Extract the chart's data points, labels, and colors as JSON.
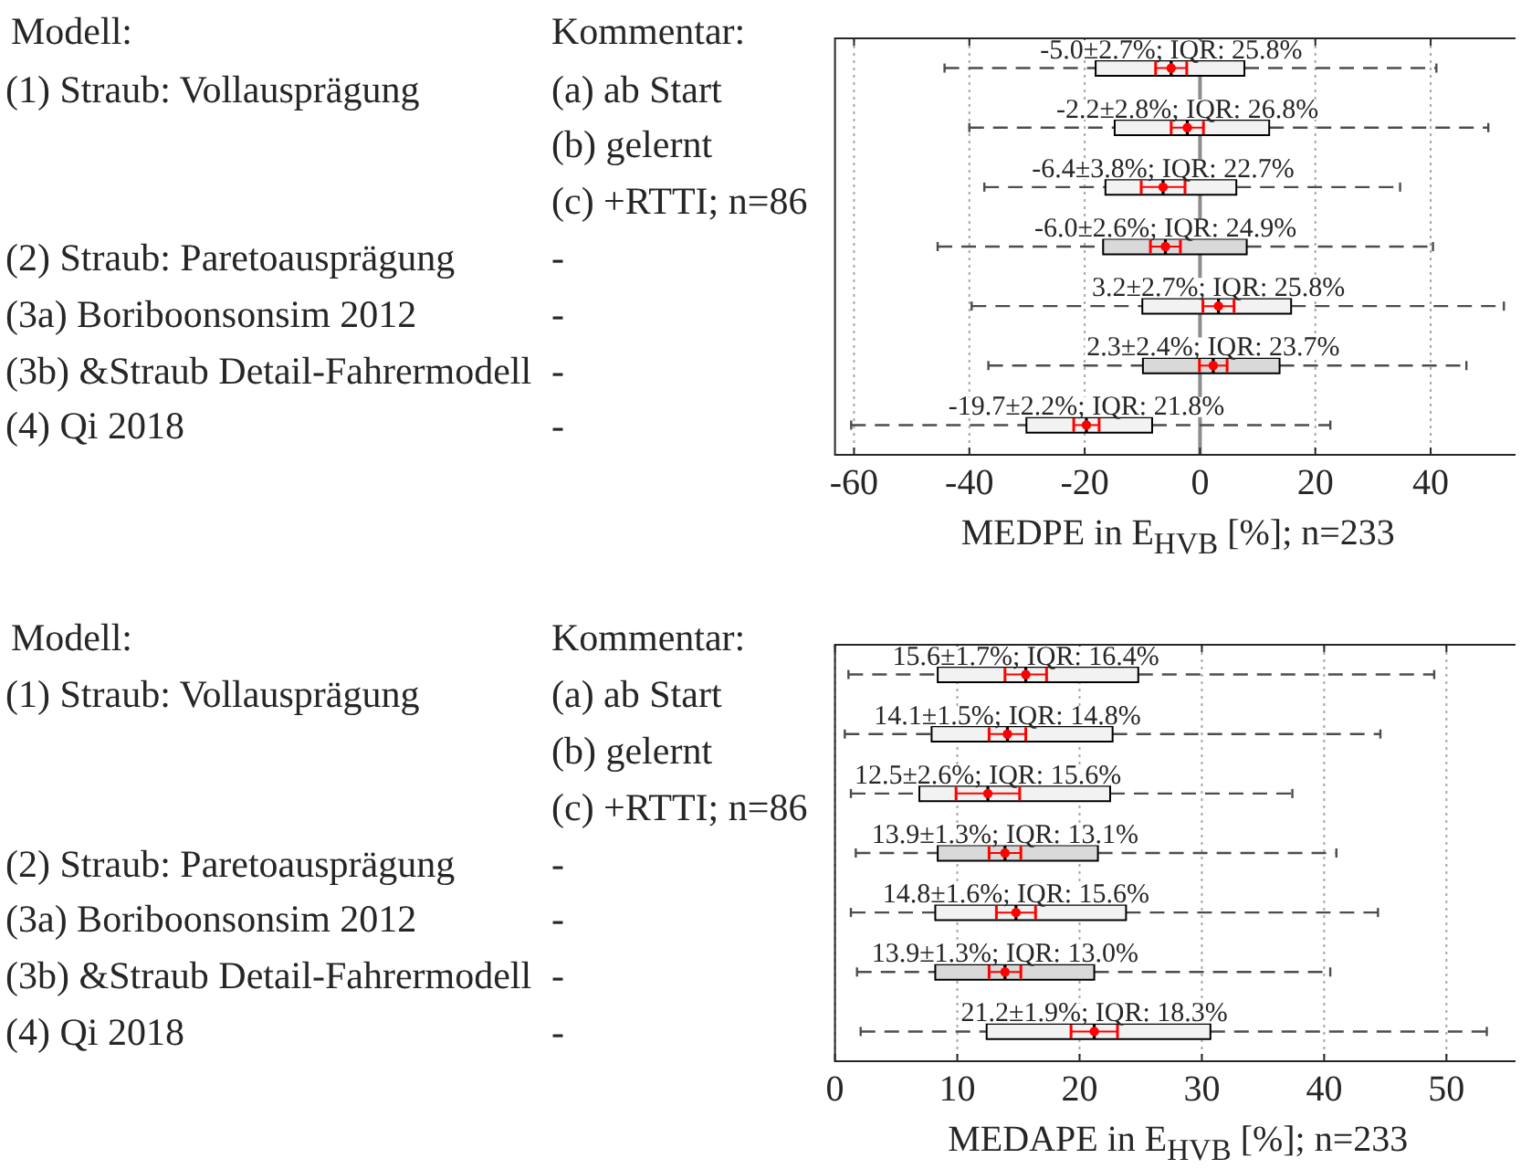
{
  "chart_data": [
    {
      "type": "other",
      "ylabel": "Modell:",
      "y2label": "Kommentar:",
      "y_categories": [
        "(1) Straub: Vollausprägung",
        null,
        null,
        "(2) Straub: Paretoausprägung",
        "(3a) Boriboonsonsim 2012",
        "(3b) &Straub Detail-Fahrermodell",
        "(4) Qi 2018"
      ],
      "y2_categories": [
        "(a) ab Start",
        "(b) gelernt",
        "(c) +RTTI; n=86",
        "-",
        "-",
        "-",
        "-"
      ]
    },
    {
      "type": "box",
      "orientation": "horizontal",
      "categories": [
        null,
        null,
        null,
        null,
        null,
        null,
        null
      ],
      "xlabel": "MEDPE in E$_{HVB}$ [%]; n=233",
      "xlim": [
        -63.3,
        54.4
      ],
      "xticks": [
        -60,
        -40,
        -20,
        0,
        20,
        40
      ],
      "grid": "x",
      "marker": "circle",
      "ref_lines": [
        {
          "axis": "x",
          "value": 0,
          "color": "#8c8c8c"
        }
      ],
      "annotations": [
        "-5.0±2.7%; IQR: 25.8%",
        "-2.2±2.8%; IQR: 26.8%",
        "-6.4±3.8%; IQR: 22.7%",
        "-6.0±2.6%; IQR: 24.9%",
        "3.2±2.7%; IQR: 25.8%",
        "2.3±2.4%; IQR: 23.7%",
        "-19.7±2.2%; IQR: 21.8%"
      ],
      "series": [
        {
          "type": "box",
          "color": "#000000",
          "colors": [
            "#f2f2f2",
            "#f2f2f2",
            "#f2f2f2",
            "#d9d9d9",
            "#f2f2f2",
            "#d9d9d9",
            "#f2f2f2"
          ],
          "boxes": [
            {
              "low": -44.3,
              "q1": -18.1,
              "median": -5.0,
              "q3": 7.7,
              "high": 41.0
            },
            {
              "low": -40.0,
              "q1": -14.8,
              "median": -2.2,
              "q3": 12.0,
              "high": 50.0
            },
            {
              "low": -37.4,
              "q1": -16.4,
              "median": -6.4,
              "q3": 6.3,
              "high": 34.7
            },
            {
              "low": -45.5,
              "q1": -16.8,
              "median": -6.0,
              "q3": 8.1,
              "high": 40.4
            },
            {
              "low": -39.6,
              "q1": -10.0,
              "median": 3.2,
              "q3": 15.8,
              "high": 52.7
            },
            {
              "low": -36.7,
              "q1": -9.9,
              "median": 2.3,
              "q3": 13.8,
              "high": 46.2
            },
            {
              "low": -60.5,
              "q1": -30.1,
              "median": -19.7,
              "q3": -8.3,
              "high": 22.6
            }
          ]
        },
        {
          "type": "scatter",
          "color": "#ff0000",
          "values": [
            -5.0,
            -2.2,
            -6.4,
            -6.0,
            3.2,
            2.3,
            -19.7
          ],
          "errors": [
            2.7,
            2.8,
            3.8,
            2.6,
            2.7,
            2.4,
            2.2
          ]
        }
      ]
    },
    {
      "type": "other",
      "ylabel": "Modell:",
      "y2label": "Kommentar:",
      "y_categories": [
        "(1) Straub: Vollausprägung",
        null,
        null,
        "(2) Straub: Paretoausprägung",
        "(3a) Boriboonsonsim 2012",
        "(3b) &Straub Detail-Fahrermodell",
        "(4) Qi 2018"
      ],
      "y2_categories": [
        "(a) ab Start",
        "(b) gelernt",
        "(c) +RTTI; n=86",
        "-",
        "-",
        "-",
        "-"
      ]
    },
    {
      "type": "box",
      "orientation": "horizontal",
      "categories": [
        null,
        null,
        null,
        null,
        null,
        null,
        null
      ],
      "xlabel": "MEDAPE in E$_{HVB}$ [%]; n=233",
      "xlim": [
        0,
        55.5
      ],
      "xticks": [
        0,
        10,
        20,
        30,
        40,
        50
      ],
      "grid": "x",
      "marker": "circle",
      "annotations": [
        "15.6±1.7%; IQR: 16.4%",
        "14.1±1.5%; IQR: 14.8%",
        "12.5±2.6%; IQR: 15.6%",
        "13.9±1.3%; IQR: 13.1%",
        "14.8±1.6%; IQR: 15.6%",
        "13.9±1.3%; IQR: 13.0%",
        "21.2±1.9%; IQR: 18.3%"
      ],
      "series": [
        {
          "type": "box",
          "color": "#000000",
          "colors": [
            "#f2f2f2",
            "#f2f2f2",
            "#f2f2f2",
            "#d9d9d9",
            "#f2f2f2",
            "#d9d9d9",
            "#f2f2f2"
          ],
          "boxes": [
            {
              "low": 1.1,
              "q1": 8.4,
              "median": 15.6,
              "q3": 24.8,
              "high": 49.0
            },
            {
              "low": 0.8,
              "q1": 7.9,
              "median": 14.1,
              "q3": 22.7,
              "high": 44.6
            },
            {
              "low": 1.3,
              "q1": 6.9,
              "median": 12.5,
              "q3": 22.5,
              "high": 37.4
            },
            {
              "low": 1.7,
              "q1": 8.4,
              "median": 13.9,
              "q3": 21.5,
              "high": 41.0
            },
            {
              "low": 1.3,
              "q1": 8.2,
              "median": 14.8,
              "q3": 23.8,
              "high": 44.4
            },
            {
              "low": 1.8,
              "q1": 8.2,
              "median": 13.9,
              "q3": 21.2,
              "high": 40.5
            },
            {
              "low": 2.1,
              "q1": 12.4,
              "median": 21.2,
              "q3": 30.7,
              "high": 53.3
            }
          ]
        },
        {
          "type": "scatter",
          "color": "#ff0000",
          "values": [
            15.6,
            14.1,
            12.5,
            13.9,
            14.8,
            13.9,
            21.2
          ],
          "errors": [
            1.7,
            1.5,
            2.6,
            1.3,
            1.6,
            1.3,
            1.9
          ]
        }
      ]
    }
  ]
}
